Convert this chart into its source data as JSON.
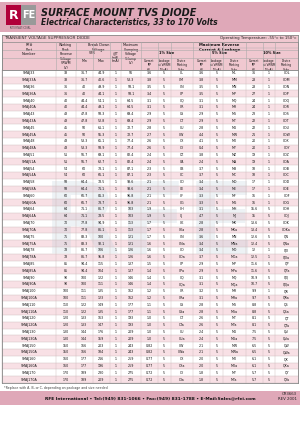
{
  "title_text": "SURFACE MOUNT TVS DIODE",
  "subtitle_text": "Electrical Characteristics, 33 to 170 Volts",
  "header_bg": "#dfa8b8",
  "logo_r_color": "#b0003a",
  "logo_fe_color": "#999999",
  "table_header1": "TRANSIENT VOLTAGE SUPPRESSOR DIODE",
  "table_header2": "Operating Temperature: -55°c to 150°c",
  "rows": [
    [
      "SMAJ33",
      "33",
      "36.7",
      "44.9",
      "1",
      "56",
      "3.6",
      "5",
      "CL",
      "3.6",
      "5",
      "ML",
      "36",
      "1",
      "COL"
    ],
    [
      "SMAJ33A",
      "33",
      "36.7",
      "40.6",
      "1",
      "53.3",
      "3.8",
      "5",
      "CM",
      "3.8",
      "5",
      "MM",
      "28",
      "1",
      "COM"
    ],
    [
      "SMAJ36",
      "36",
      "40",
      "49.9",
      "1",
      "58.1",
      "3.5",
      "5",
      "CN",
      "3.5",
      "5",
      "MN",
      "28",
      "1",
      "CON"
    ],
    [
      "SMAJ36A",
      "36",
      "40",
      "44.1",
      "1",
      "58.1",
      "3.4",
      "5",
      "CP",
      "3.5",
      "5",
      "MP",
      "27",
      "1",
      "COP"
    ],
    [
      "SMAJ40",
      "40",
      "44.4",
      "54.1",
      "1",
      "64.5",
      "3.1",
      "5",
      "CQ",
      "3.1",
      "5",
      "MQ",
      "24",
      "1",
      "COQ"
    ],
    [
      "SMAJ40A",
      "40",
      "44.4",
      "49.1",
      "1",
      "64.5",
      "3.1",
      "5",
      "CR",
      "3.1",
      "5",
      "MR",
      "24",
      "1",
      "COR"
    ],
    [
      "SMAJ43",
      "43",
      "47.8",
      "58.3",
      "1",
      "69.4",
      "2.9",
      "5",
      "CS",
      "2.9",
      "5",
      "MS",
      "23",
      "1",
      "COS"
    ],
    [
      "SMAJ43A",
      "43",
      "47.8",
      "52.8",
      "1",
      "69.4",
      "2.9",
      "5",
      "CT",
      "2.9",
      "5",
      "MT",
      "22",
      "1",
      "COT"
    ],
    [
      "SMAJ45",
      "45",
      "50",
      "61.1",
      "1",
      "72.7",
      "2.8",
      "5",
      "CU",
      "2.8",
      "5",
      "MU",
      "22",
      "1",
      "COU"
    ],
    [
      "SMAJ45A",
      "45",
      "50",
      "55.3",
      "1",
      "72.7",
      "2.7",
      "5",
      "CW",
      "4.4",
      "5",
      "MW",
      "21",
      "1",
      "COW"
    ],
    [
      "SMAJ48",
      "48",
      "53.3",
      "65.1",
      "1",
      "77.4",
      "2.6",
      "5",
      "CX",
      "4.1",
      "5",
      "MX",
      "20",
      "1",
      "COX"
    ],
    [
      "SMAJ48A",
      "48",
      "53.3",
      "58.9",
      "1",
      "77.4",
      "2.6",
      "5",
      "CY",
      "0.4",
      "5",
      "MY",
      "20",
      "1",
      "COY"
    ],
    [
      "SMAJ51",
      "51",
      "56.7",
      "69.1",
      "1",
      "82.4",
      "2.4",
      "5",
      "CZ",
      "3.8",
      "5",
      "MZ",
      "19",
      "1",
      "COZ"
    ],
    [
      "SMAJ51A",
      "51",
      "56.7",
      "62.7",
      "1",
      "82.4",
      "2.4",
      "5",
      "CA",
      "2.4",
      "5",
      "MA",
      "19",
      "1",
      "COA"
    ],
    [
      "SMAJ54",
      "54",
      "60",
      "73.1",
      "1",
      "87.1",
      "2.3",
      "5",
      "CB",
      "3.7",
      "5",
      "MB",
      "18",
      "1",
      "COB"
    ],
    [
      "SMAJ54A",
      "54",
      "60",
      "66.1",
      "1",
      "87.1",
      "2.3",
      "5",
      "CC",
      "3.7",
      "5",
      "MC",
      "18",
      "1",
      "COC"
    ],
    [
      "SMAJ58",
      "58",
      "64.4",
      "78.5",
      "1",
      "93.6",
      "2.1",
      "5",
      "CD",
      "3.4",
      "5",
      "MD",
      "17",
      "1",
      "COD"
    ],
    [
      "SMAJ58A",
      "58",
      "64.4",
      "71.1",
      "1",
      "93.6",
      "2.1",
      "5",
      "CE",
      "3.4",
      "5",
      "ME",
      "17",
      "1",
      "COE"
    ],
    [
      "SMAJ60",
      "60",
      "66.7",
      "81.3",
      "1",
      "96.8",
      "2.1",
      "5",
      "CF",
      "3.3",
      "5",
      "MF",
      "16",
      "1",
      "COF"
    ],
    [
      "SMAJ60A",
      "60",
      "66.7",
      "73.7",
      "1",
      "96.8",
      "2.1",
      "5",
      "CG",
      "3.3",
      "5",
      "MG",
      "16",
      "1",
      "COG"
    ],
    [
      "SMAJ64",
      "64",
      "71.1",
      "86.7",
      "1",
      "103",
      "1.9",
      "5",
      "CH",
      "3.1",
      "5",
      "MH",
      "15.6",
      "5",
      "COH"
    ],
    [
      "SMAJ64A",
      "64",
      "71.1",
      "78.5",
      "1",
      "103",
      "1.9",
      "5",
      "CJ",
      "4.7",
      "5",
      "MJ",
      "15",
      "5",
      "COJ"
    ],
    [
      "SMAJ70",
      "70",
      "77.8",
      "94.9",
      "1",
      "113",
      "1.7",
      "5",
      "CK",
      "2.8",
      "5",
      "MK",
      "13.6",
      "5",
      "COK"
    ],
    [
      "SMAJ70A",
      "70",
      "77.8",
      "86.1",
      "1",
      "113",
      "1.7",
      "5",
      "CKa",
      "2.8",
      "5",
      "MKa",
      "13.4",
      "5",
      "COKa"
    ],
    [
      "SMAJ75",
      "75",
      "83.3",
      "100",
      "1",
      "121",
      "1.7",
      "5",
      "CN",
      "3.6",
      "5",
      "MN",
      "12.6",
      "5",
      "QN"
    ],
    [
      "SMAJ75A",
      "75",
      "83.3",
      "92.1",
      "1",
      "121",
      "1.6",
      "5",
      "CNa",
      "3.4",
      "5",
      "MNa",
      "12.4",
      "5",
      "QNa"
    ],
    [
      "SMAJ78",
      "78",
      "86.7",
      "106",
      "1",
      "126",
      "1.6",
      "5",
      "CO",
      "3.4",
      "5",
      "MO",
      "12",
      "1",
      "QO"
    ],
    [
      "SMAJ78A",
      "78",
      "86.7",
      "95.8",
      "1",
      "126",
      "1.6",
      "5",
      "COa",
      "3.7",
      "5",
      "MOa",
      "12.5",
      "1",
      "QOa"
    ],
    [
      "SMAJ85",
      "85",
      "94.4",
      "115",
      "1",
      "137",
      "1.5",
      "5",
      "CP",
      "2.9",
      "5",
      "MP",
      "11.6",
      "5",
      "QP"
    ],
    [
      "SMAJ85A",
      "85",
      "94.4",
      "104",
      "1",
      "137",
      "1.4",
      "5",
      "CPa",
      "2.9",
      "5",
      "MPa",
      "11.6",
      "5",
      "QPa"
    ],
    [
      "SMAJ90",
      "90",
      "100",
      "122",
      "1",
      "146",
      "1.4",
      "5",
      "CQ",
      "3.1",
      "5",
      "MQ",
      "10.9",
      "5",
      "QQ"
    ],
    [
      "SMAJ90A",
      "90",
      "100",
      "111",
      "1",
      "146",
      "1.4",
      "5",
      "CQa",
      "3.1",
      "5",
      "MQa",
      "10.7",
      "5",
      "QQa"
    ],
    [
      "SMAJ100",
      "100",
      "111",
      "135",
      "1",
      "162",
      "1.2",
      "5",
      "CR",
      "3.2",
      "5",
      "MR",
      "9.9",
      "1",
      "QR"
    ],
    [
      "SMAJ100A",
      "100",
      "111",
      "123",
      "1",
      "162",
      "1.2",
      "5",
      "CRa",
      "3.1",
      "5",
      "MRa",
      "9.7",
      "5",
      "QRa"
    ],
    [
      "SMAJ110",
      "110",
      "122",
      "149",
      "1",
      "177",
      "1.1",
      "5",
      "CS",
      "2.8",
      "5",
      "MS",
      "8.8",
      "5",
      "QS"
    ],
    [
      "SMAJ110A",
      "110",
      "122",
      "135",
      "1",
      "177",
      "1.1",
      "5",
      "CSa",
      "2.8",
      "5",
      "MSa",
      "8.8",
      "5",
      "QSa"
    ],
    [
      "SMAJ120",
      "120",
      "133",
      "163",
      "1",
      "193",
      "1.0",
      "5",
      "CT",
      "2.6",
      "5",
      "MT",
      "8.1",
      "5",
      "QT"
    ],
    [
      "SMAJ120A",
      "120",
      "133",
      "147",
      "1",
      "193",
      "1.0",
      "5",
      "CTa",
      "2.6",
      "5",
      "MTa",
      "8.1",
      "5",
      "QTa"
    ],
    [
      "SMAJ130",
      "130",
      "144",
      "176",
      "1",
      "209",
      "1.0",
      "5",
      "CU",
      "2.4",
      "5",
      "MU",
      "7.5",
      "5",
      "QU"
    ],
    [
      "SMAJ130A",
      "130",
      "144",
      "159",
      "1",
      "209",
      "1.0",
      "5",
      "CUa",
      "2.4",
      "5",
      "MUa",
      "7.5",
      "5",
      "QUa"
    ],
    [
      "SMAJ150",
      "150",
      "166",
      "203",
      "1",
      "243",
      "0.82",
      "5",
      "CW",
      "2.1",
      "5",
      "MW",
      "6.5",
      "5",
      "QW"
    ],
    [
      "SMAJ150A",
      "150",
      "166",
      "184",
      "1",
      "243",
      "0.82",
      "5",
      "CWa",
      "2.1",
      "5",
      "MWa",
      "6.5",
      "5",
      "QWa"
    ],
    [
      "SMAJ160",
      "160",
      "177",
      "216",
      "1",
      "259",
      "0.77",
      "5",
      "CX",
      "2.0",
      "5",
      "MX",
      "6.1",
      "5",
      "QX"
    ],
    [
      "SMAJ160A",
      "160",
      "177",
      "196",
      "1",
      "259",
      "0.77",
      "5",
      "CXa",
      "2.0",
      "5",
      "MXa",
      "6.1",
      "5",
      "QXa"
    ],
    [
      "SMAJ170",
      "170",
      "189",
      "230",
      "1",
      "275",
      "0.72",
      "5",
      "CY",
      "1.8",
      "5",
      "MY",
      "5.7",
      "5",
      "QY"
    ],
    [
      "SMAJ170A",
      "170",
      "189",
      "209",
      "1",
      "275",
      "0.72",
      "5",
      "CYa",
      "1.8",
      "5",
      "MYa",
      "5.7",
      "5",
      "QYa"
    ]
  ],
  "footer_note": "*Replace with A, B, or C, depending on package and size needed",
  "footer_left": "RFE International • Tel:(949) 831-1066 • Fax:(949) 831-1788 • E-Mail:Sales@rfei.com",
  "footer_right": "CR3663\nREV 2001",
  "bg_color": "#ffffff",
  "table_header_bg": "#f0c8d0",
  "table_row_alt": "#f8e0e5",
  "grid_color": "#ccbbbb"
}
